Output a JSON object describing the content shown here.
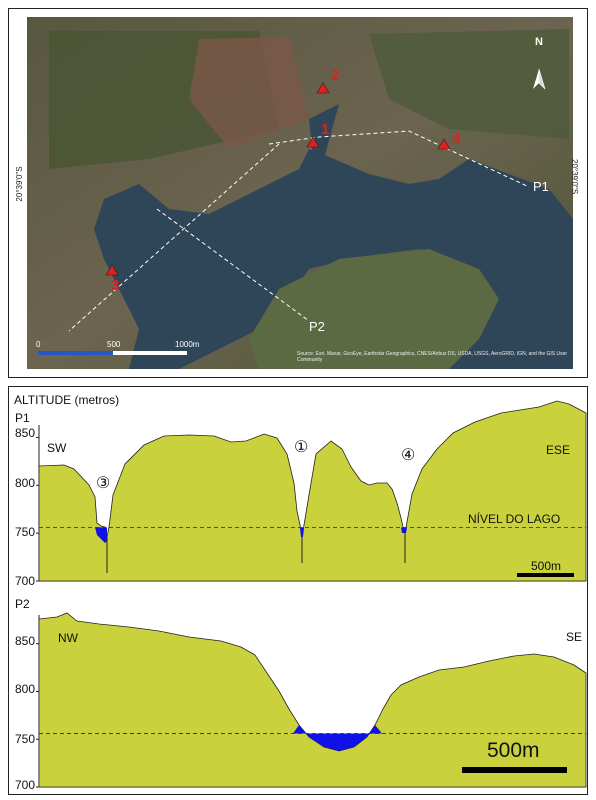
{
  "map": {
    "north_label": "N",
    "coord_left": "20°39'0\"S",
    "coord_right": "20°39'0\"S",
    "profile_lines": [
      {
        "name": "P1"
      },
      {
        "name": "P2"
      }
    ],
    "points": [
      {
        "label": "1"
      },
      {
        "label": "2"
      },
      {
        "label": "3"
      },
      {
        "label": "4"
      }
    ],
    "scale_bar": {
      "labels": [
        "0",
        "500",
        "1000m"
      ]
    },
    "attribution": "Source: Esri, Maxar, GeoEye, Earthstar Geographics, CNES/Airbus DS, USDA, USGS, AeroGRID, IGN, and the GIS User Community",
    "colors": {
      "marker": "#e0201e",
      "water": "#2e4358",
      "forest": "#4f5a3a",
      "marker_label": "#e0201e"
    }
  },
  "profiles": {
    "y_axis_title": "ALTITUDE (metros)",
    "lake_level_label": "NÍVEL DO LAGO",
    "lake_level": 756,
    "colors": {
      "terrain": "#c9d23c",
      "water": "#1010e8",
      "outline": "#222222"
    },
    "p1": {
      "name": "P1",
      "left_dir": "SW",
      "right_dir": "ESE",
      "y_ticks": [
        "850",
        "800",
        "750",
        "700"
      ],
      "ylim": [
        700,
        865
      ],
      "scale_label": "500m",
      "point_markers": [
        "①",
        "③",
        "④"
      ]
    },
    "p2": {
      "name": "P2",
      "left_dir": "NW",
      "right_dir": "SE",
      "y_ticks": [
        "850",
        "800",
        "750",
        "700"
      ],
      "ylim": [
        700,
        880
      ],
      "scale_label": "500m"
    }
  }
}
